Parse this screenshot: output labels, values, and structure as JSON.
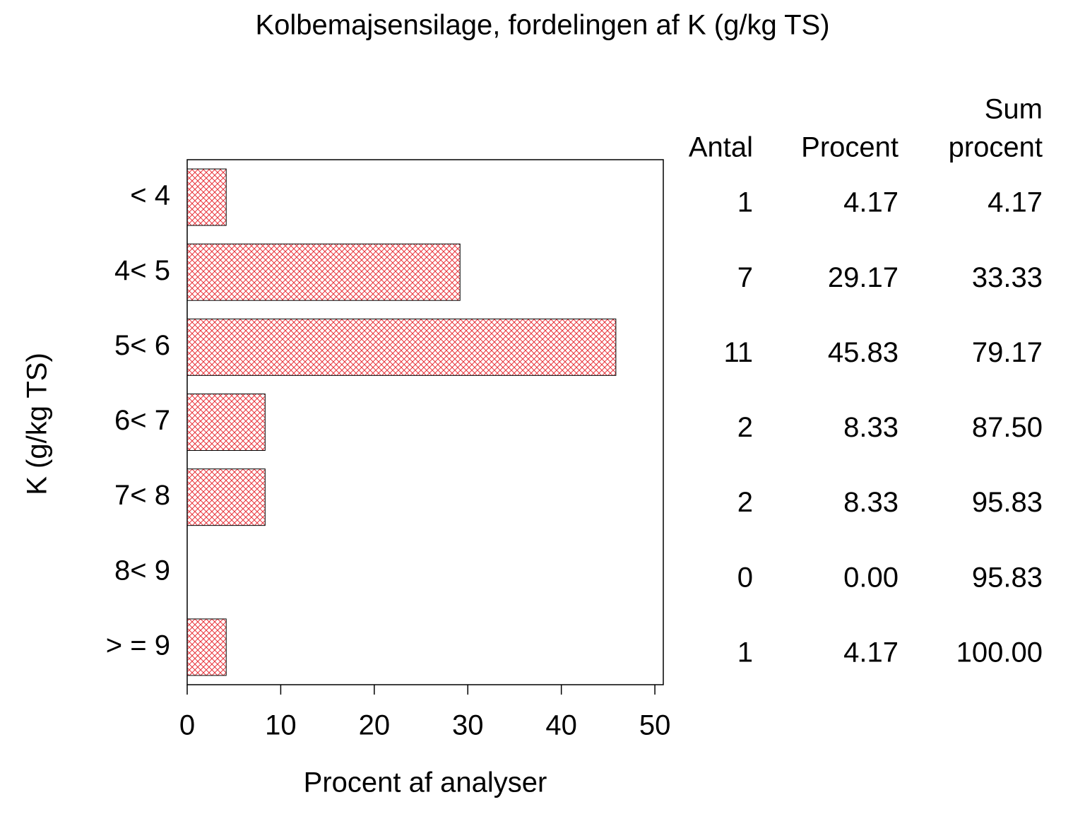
{
  "chart_data": {
    "type": "hbar",
    "title": "Kolbemajsensilage,  fordelingen  af  K  (g/kg  TS)",
    "x_label": "Procent  af  analyser",
    "y_label": "K  (g/kg  TS)",
    "categories": [
      "< 4",
      "4< 5",
      "5< 6",
      "6< 7",
      "7< 8",
      "8< 9",
      "> = 9"
    ],
    "values": [
      4.17,
      29.17,
      45.83,
      8.33,
      8.33,
      0,
      4.17
    ],
    "value_labels": [
      "4.17",
      "29.17",
      "45.83",
      "8.33",
      "8.33",
      "0.00",
      "4.17"
    ],
    "color": "#e8333a",
    "xlim": [
      0,
      50.9
    ],
    "xticks": [
      0,
      10,
      20,
      30,
      40,
      50
    ],
    "table": {
      "headers": [
        "Antal",
        "Procent",
        [
          "Sum",
          "procent"
        ]
      ],
      "counts": [
        1,
        7,
        11,
        2,
        2,
        0,
        1
      ],
      "cumulative": [
        4.17,
        33.33,
        79.17,
        87.5,
        95.83,
        95.83,
        100
      ],
      "cumulative_labels": [
        "4.17",
        "33.33",
        "79.17",
        "87.50",
        "95.83",
        "95.83",
        "100.00"
      ]
    }
  }
}
